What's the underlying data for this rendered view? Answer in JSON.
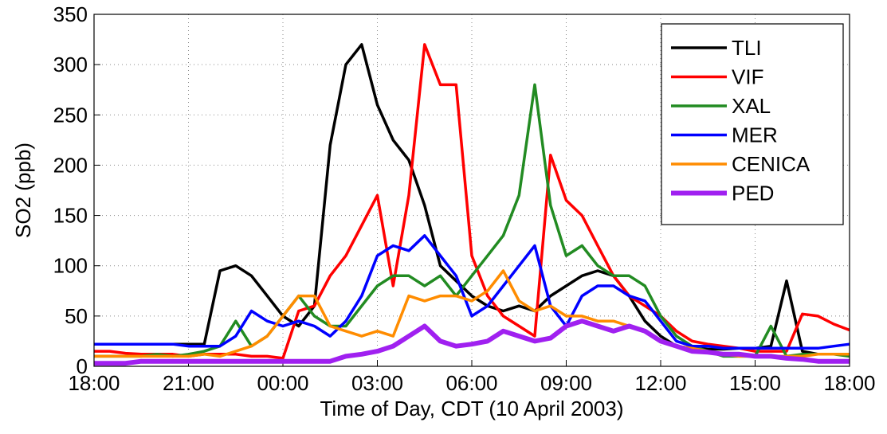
{
  "chart_data": {
    "type": "line",
    "x_label": "Time of Day, CDT (10 April 2003)",
    "y_label": "SO2 (ppb)",
    "x": [
      0,
      0.5,
      1,
      1.5,
      2,
      2.5,
      3,
      3.5,
      4,
      4.5,
      5,
      5.5,
      6,
      6.5,
      7,
      7.5,
      8,
      8.5,
      9,
      9.5,
      10,
      10.5,
      11,
      11.5,
      12,
      12.5,
      13,
      13.5,
      14,
      14.5,
      15,
      15.5,
      16,
      16.5,
      17,
      17.5,
      18,
      18.5,
      19,
      19.5,
      20,
      20.5,
      21,
      21.5,
      22,
      22.5,
      23,
      23.5,
      24
    ],
    "xlim": [
      0,
      24
    ],
    "xticks": [
      {
        "value": 0,
        "label": "18:00"
      },
      {
        "value": 3,
        "label": "21:00"
      },
      {
        "value": 6,
        "label": "00:00"
      },
      {
        "value": 9,
        "label": "03:00"
      },
      {
        "value": 12,
        "label": "06:00"
      },
      {
        "value": 15,
        "label": "09:00"
      },
      {
        "value": 18,
        "label": "12:00"
      },
      {
        "value": 21,
        "label": "15:00"
      },
      {
        "value": 24,
        "label": "18:00"
      }
    ],
    "ylim": [
      0,
      350
    ],
    "yticks": [
      0,
      50,
      100,
      150,
      200,
      250,
      300,
      350
    ],
    "grid": true,
    "legend": "upper right",
    "series": [
      {
        "name": "TLI",
        "color": "#000000",
        "line_width": 3.5,
        "values": [
          22,
          22,
          22,
          22,
          22,
          22,
          22,
          22,
          95,
          100,
          90,
          70,
          50,
          40,
          60,
          220,
          300,
          320,
          260,
          225,
          205,
          160,
          100,
          85,
          70,
          60,
          55,
          60,
          55,
          70,
          80,
          90,
          95,
          90,
          70,
          45,
          30,
          20,
          18,
          17,
          17,
          18,
          18,
          20,
          85,
          15,
          12,
          12,
          12
        ]
      },
      {
        "name": "VIF",
        "color": "#ff0000",
        "line_width": 3.5,
        "values": [
          15,
          15,
          13,
          12,
          12,
          12,
          10,
          12,
          12,
          12,
          10,
          10,
          8,
          55,
          60,
          90,
          110,
          140,
          170,
          80,
          170,
          320,
          280,
          280,
          110,
          70,
          50,
          40,
          30,
          210,
          165,
          150,
          120,
          90,
          70,
          60,
          50,
          35,
          25,
          22,
          20,
          18,
          15,
          15,
          15,
          52,
          50,
          42,
          36
        ]
      },
      {
        "name": "XAL",
        "color": "#228b22",
        "line_width": 3.5,
        "values": [
          10,
          10,
          10,
          10,
          12,
          10,
          12,
          15,
          20,
          45,
          20,
          30,
          50,
          70,
          50,
          40,
          40,
          60,
          80,
          90,
          90,
          80,
          90,
          70,
          90,
          110,
          130,
          170,
          280,
          160,
          110,
          120,
          100,
          90,
          90,
          80,
          50,
          30,
          20,
          15,
          10,
          10,
          10,
          40,
          10,
          12,
          12,
          12,
          10
        ]
      },
      {
        "name": "MER",
        "color": "#0000ff",
        "line_width": 3.5,
        "values": [
          22,
          22,
          22,
          22,
          22,
          22,
          20,
          20,
          20,
          30,
          55,
          45,
          40,
          45,
          40,
          30,
          45,
          70,
          110,
          120,
          115,
          130,
          110,
          90,
          50,
          60,
          80,
          100,
          120,
          60,
          40,
          70,
          80,
          80,
          70,
          65,
          45,
          25,
          20,
          20,
          18,
          18,
          18,
          18,
          18,
          18,
          18,
          20,
          22
        ]
      },
      {
        "name": "CENICA",
        "color": "#ff8c00",
        "line_width": 3.5,
        "values": [
          10,
          10,
          10,
          10,
          10,
          10,
          10,
          12,
          10,
          15,
          20,
          30,
          50,
          70,
          70,
          40,
          35,
          30,
          35,
          30,
          70,
          65,
          70,
          70,
          65,
          75,
          95,
          65,
          55,
          60,
          50,
          50,
          45,
          45,
          40,
          35,
          25,
          20,
          18,
          15,
          12,
          10,
          10,
          10,
          10,
          10,
          12,
          12,
          12
        ]
      },
      {
        "name": "PED",
        "color": "#a020f0",
        "line_width": 6,
        "values": [
          3,
          3,
          3,
          5,
          5,
          5,
          5,
          5,
          5,
          5,
          5,
          5,
          5,
          5,
          5,
          5,
          10,
          12,
          15,
          20,
          30,
          40,
          25,
          20,
          22,
          25,
          35,
          30,
          25,
          28,
          40,
          45,
          40,
          35,
          40,
          35,
          25,
          20,
          15,
          14,
          12,
          12,
          10,
          10,
          8,
          7,
          5,
          5,
          5
        ]
      }
    ]
  }
}
